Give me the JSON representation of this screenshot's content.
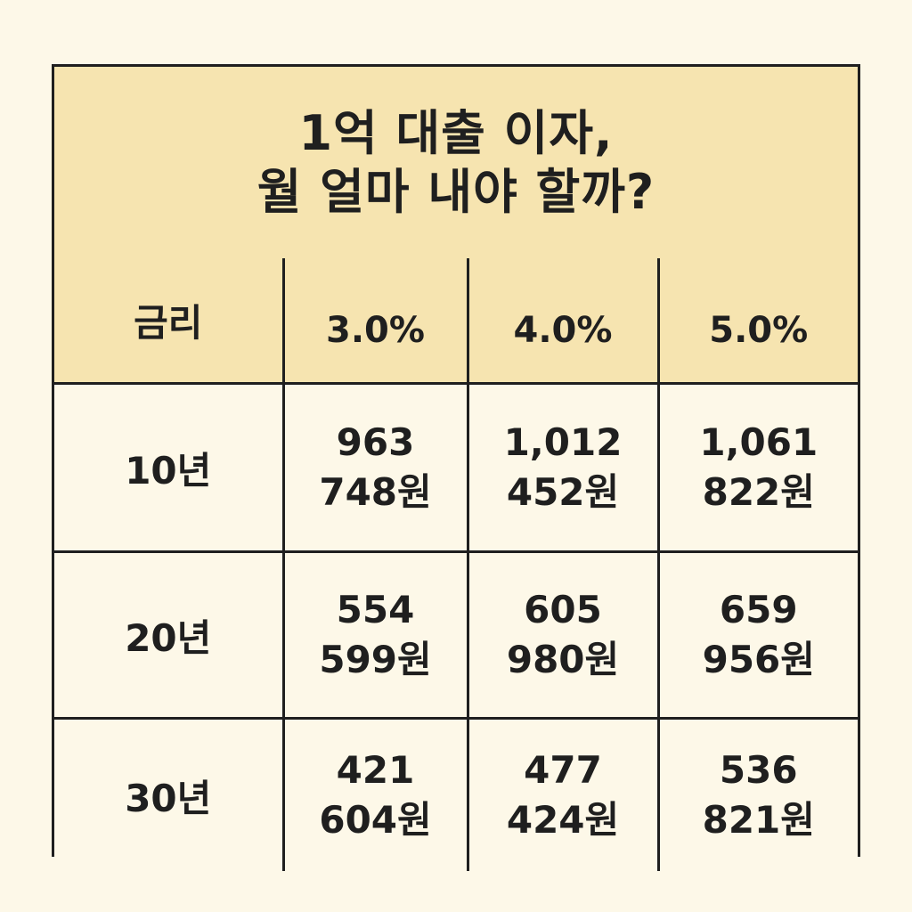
{
  "title": {
    "line1": "1억 대출 이자,",
    "line2": "월 얼마 내야 할까?"
  },
  "colors": {
    "header_bg": "#f6e4b0",
    "cell_bg": "#fdf8e8",
    "border": "#1f1f1f"
  },
  "chart_data": {
    "type": "table",
    "title": "1억 대출 이자, 월 얼마 내야 할까?",
    "header_label": "금리",
    "columns": [
      "3.0%",
      "4.0%",
      "5.0%"
    ],
    "rows": [
      {
        "term": "10년",
        "cells": [
          {
            "line1": "963",
            "line2": "748원"
          },
          {
            "line1": "1,012",
            "line2": "452원"
          },
          {
            "line1": "1,061",
            "line2": "822원"
          }
        ]
      },
      {
        "term": "20년",
        "cells": [
          {
            "line1": "554",
            "line2": "599원"
          },
          {
            "line1": "605",
            "line2": "980원"
          },
          {
            "line1": "659",
            "line2": "956원"
          }
        ]
      },
      {
        "term": "30년",
        "cells": [
          {
            "line1": "421",
            "line2": "604원"
          },
          {
            "line1": "477",
            "line2": "424원"
          },
          {
            "line1": "536",
            "line2": "821원"
          }
        ]
      }
    ]
  }
}
